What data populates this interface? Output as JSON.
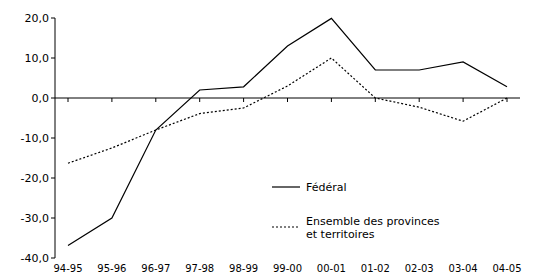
{
  "chart_data": {
    "type": "line",
    "categories": [
      "94-95",
      "95-96",
      "96-97",
      "97-98",
      "98-99",
      "99-00",
      "00-01",
      "01-02",
      "02-03",
      "03-04",
      "04-05"
    ],
    "series": [
      {
        "name": "Fédéral",
        "color": "#000000",
        "line_style": "solid",
        "values": [
          -36.9,
          -30.0,
          -8.0,
          2.0,
          2.8,
          13.0,
          19.9,
          7.0,
          7.0,
          9.0,
          2.8
        ]
      },
      {
        "name": "Ensemble des provinces et territoires",
        "color": "#000000",
        "line_style": "dotted",
        "values": [
          -16.3,
          -12.5,
          -8.0,
          -3.9,
          -2.5,
          3.0,
          10.0,
          0.0,
          -2.3,
          -5.8,
          0.0
        ]
      }
    ],
    "ylim": [
      -40,
      20
    ],
    "yticks": [
      {
        "value": -40,
        "label": "-40,0"
      },
      {
        "value": -30,
        "label": "-30,0"
      },
      {
        "value": -20,
        "label": "-20,0"
      },
      {
        "value": -10,
        "label": "-10,0"
      },
      {
        "value": 0,
        "label": "0,0"
      },
      {
        "value": 10,
        "label": "10,0"
      },
      {
        "value": 20,
        "label": "20,0"
      }
    ],
    "grid": false,
    "legend": "center"
  }
}
